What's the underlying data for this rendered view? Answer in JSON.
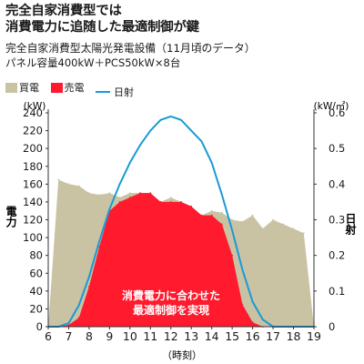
{
  "header": {
    "title_line1": "完全自家消費型では",
    "title_line2": "消費電力に追随した最適制御が鍵",
    "subtitle_line1": "完全自家消費型太陽光発電設備（11月頃のデータ）",
    "subtitle_line2": "パネル容量400kW＋PCS50kW×8台"
  },
  "legend": {
    "purchase": "買電",
    "sale": "売電",
    "irradiance": "日射"
  },
  "colors": {
    "purchase": "#c9c3a4",
    "sale": "#ff1a2e",
    "irradiance": "#1a9ad6",
    "text": "#1a1a1a"
  },
  "annotation": {
    "line1": "消費電力に合わせた",
    "line2": "最適制御を実現"
  },
  "chart_data": {
    "type": "area",
    "title": "",
    "xlabel": "（時刻）",
    "ylabel_left": "電力",
    "ylabel_left_unit": "(kW)",
    "ylabel_right": "日射",
    "ylabel_right_unit": "(kW/㎡)",
    "xlim": [
      6,
      19
    ],
    "ylim_left": [
      0,
      240
    ],
    "ylim_right": [
      0,
      0.6
    ],
    "x_ticks": [
      6,
      7,
      8,
      9,
      10,
      11,
      12,
      13,
      14,
      15,
      16,
      17,
      18,
      19
    ],
    "y_left_ticks": [
      0,
      20,
      40,
      60,
      80,
      100,
      120,
      140,
      160,
      180,
      200,
      220,
      240
    ],
    "y_right_ticks": [
      0,
      0.1,
      0.2,
      0.3,
      0.4,
      0.5,
      0.6
    ],
    "x": [
      6.0,
      6.5,
      7.0,
      7.5,
      8.0,
      8.5,
      9.0,
      9.5,
      10.0,
      10.5,
      11.0,
      11.5,
      12.0,
      12.5,
      13.0,
      13.5,
      14.0,
      14.5,
      15.0,
      15.5,
      16.0,
      16.5,
      17.0,
      17.5,
      18.0,
      18.5,
      19.0
    ],
    "series": [
      {
        "name": "買電",
        "axis": "left",
        "values": [
          0,
          165,
          160,
          158,
          150,
          148,
          150,
          145,
          150,
          150,
          150,
          140,
          145,
          140,
          135,
          125,
          130,
          128,
          120,
          118,
          125,
          110,
          120,
          115,
          110,
          105,
          0
        ]
      },
      {
        "name": "売電",
        "axis": "left",
        "values": [
          0,
          0,
          2,
          10,
          45,
          90,
          130,
          140,
          145,
          150,
          150,
          140,
          140,
          140,
          135,
          125,
          125,
          115,
          80,
          25,
          5,
          0,
          0,
          0,
          0,
          0,
          0
        ]
      },
      {
        "name": "日射",
        "axis": "right",
        "values": [
          0,
          0,
          0.01,
          0.06,
          0.14,
          0.24,
          0.33,
          0.4,
          0.46,
          0.51,
          0.55,
          0.58,
          0.59,
          0.58,
          0.55,
          0.52,
          0.46,
          0.37,
          0.27,
          0.16,
          0.07,
          0.02,
          0,
          0,
          0,
          0,
          0
        ]
      }
    ]
  }
}
